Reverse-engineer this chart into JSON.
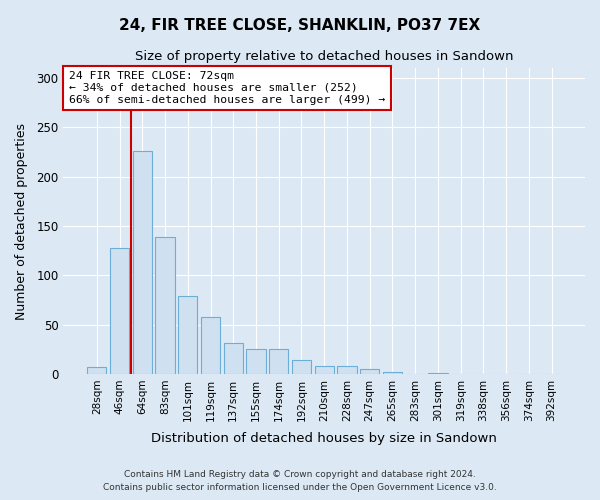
{
  "title": "24, FIR TREE CLOSE, SHANKLIN, PO37 7EX",
  "subtitle": "Size of property relative to detached houses in Sandown",
  "xlabel": "Distribution of detached houses by size in Sandown",
  "ylabel": "Number of detached properties",
  "bar_labels": [
    "28sqm",
    "46sqm",
    "64sqm",
    "83sqm",
    "101sqm",
    "119sqm",
    "137sqm",
    "155sqm",
    "174sqm",
    "192sqm",
    "210sqm",
    "228sqm",
    "247sqm",
    "265sqm",
    "283sqm",
    "301sqm",
    "319sqm",
    "338sqm",
    "356sqm",
    "374sqm",
    "392sqm"
  ],
  "bar_values": [
    7,
    128,
    226,
    139,
    79,
    58,
    31,
    25,
    25,
    14,
    8,
    8,
    5,
    2,
    0,
    1,
    0,
    0,
    0,
    0,
    0
  ],
  "bar_color": "#cfe0f0",
  "bar_edge_color": "#6baed6",
  "vline_color": "#cc0000",
  "vline_pos": 1.5,
  "annotation_title": "24 FIR TREE CLOSE: 72sqm",
  "annotation_line1": "← 34% of detached houses are smaller (252)",
  "annotation_line2": "66% of semi-detached houses are larger (499) →",
  "annotation_box_color": "#ffffff",
  "annotation_box_edge": "#cc0000",
  "ylim": [
    0,
    310
  ],
  "yticks": [
    0,
    50,
    100,
    150,
    200,
    250,
    300
  ],
  "background_color": "#dce9f5",
  "plot_bg_color": "#dce9f5",
  "grid_color": "#ffffff",
  "footer1": "Contains HM Land Registry data © Crown copyright and database right 2024.",
  "footer2": "Contains public sector information licensed under the Open Government Licence v3.0."
}
